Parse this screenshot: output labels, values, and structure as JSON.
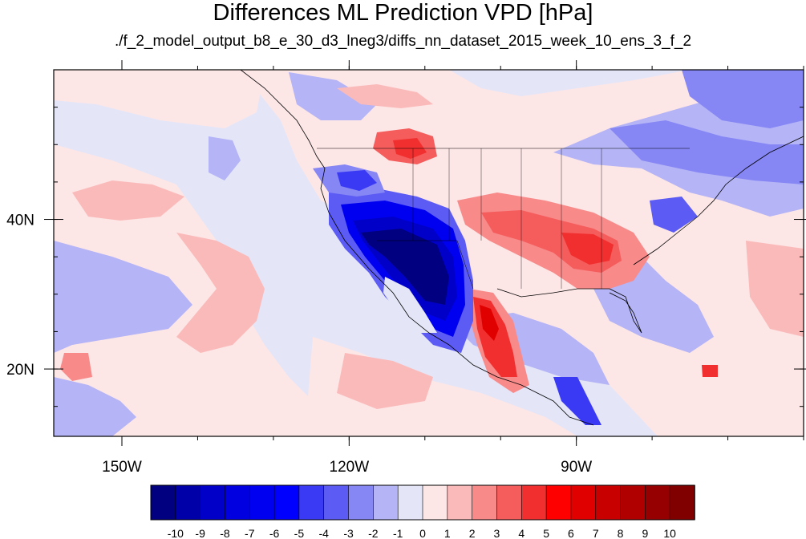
{
  "map": {
    "title": "Differences ML Prediction VPD [hPa]",
    "subtitle": "./f_2_model_output_b8_e_30_d3_lneg3/diffs_nn_dataset_2015_week_10_ens_3_f_2",
    "lat_labels": [
      "40N",
      "20N"
    ],
    "lon_labels": [
      "150W",
      "120W",
      "90W"
    ],
    "extent": {
      "lon_min": -159,
      "lon_max": -60,
      "lat_min": 11,
      "lat_max": 60
    },
    "colorbar": {
      "tick_labels": [
        "-10",
        "-9",
        "-8",
        "-7",
        "-6",
        "-5",
        "-4",
        "-3",
        "-2",
        "-1",
        "0",
        "1",
        "2",
        "3",
        "4",
        "5",
        "6",
        "7",
        "8",
        "9",
        "10"
      ],
      "colors": [
        "#000080",
        "#0000a8",
        "#0000c8",
        "#0000e0",
        "#0000f0",
        "#0000ff",
        "#3a3af5",
        "#5c5cf5",
        "#8686f5",
        "#b4b4f6",
        "#e4e6f8",
        "#fde6e6",
        "#fbbaba",
        "#f88a8a",
        "#f55c5c",
        "#f22f2f",
        "#ff0000",
        "#e00000",
        "#c80000",
        "#b00000",
        "#960000",
        "#800000"
      ]
    }
  }
}
